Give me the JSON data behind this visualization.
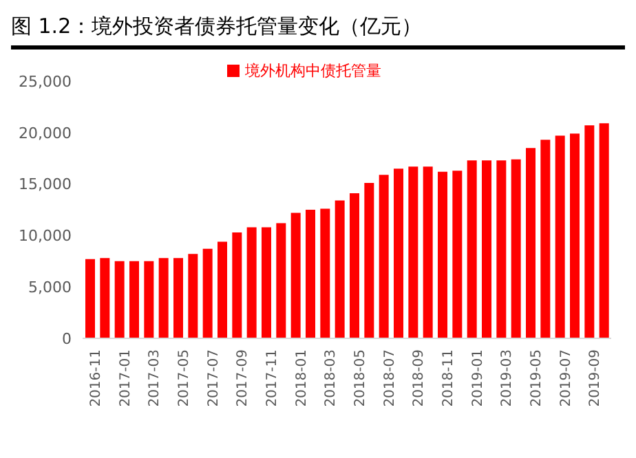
{
  "chart_data": {
    "type": "bar",
    "title": "图 1.2：境外投资者债券托管量变化（亿元）",
    "categories": [
      "2016-11",
      null,
      "2017-01",
      null,
      "2017-03",
      null,
      "2017-05",
      null,
      "2017-07",
      null,
      "2017-09",
      null,
      "2017-11",
      null,
      "2018-01",
      null,
      "2018-03",
      null,
      "2018-05",
      null,
      "2018-07",
      null,
      "2018-09",
      null,
      "2018-11",
      null,
      "2019-01",
      null,
      "2019-03",
      null,
      "2019-05",
      null,
      "2019-07",
      null,
      "2019-09",
      null
    ],
    "series": [
      {
        "name": "境外机构中债托管量",
        "color": "#ff0000",
        "values": [
          7700,
          7800,
          7500,
          7500,
          7500,
          7800,
          7800,
          8200,
          8700,
          9400,
          10300,
          10800,
          10800,
          11200,
          12200,
          12500,
          12600,
          13400,
          14100,
          15100,
          15900,
          16500,
          16700,
          16700,
          16200,
          16300,
          17300,
          17300,
          17300,
          17400,
          18500,
          19300,
          19700,
          19900,
          20700,
          20900
        ]
      }
    ],
    "ylim": [
      0,
      25000
    ],
    "yticks": [
      0,
      {
        "value": 5000,
        "label": "5,000"
      },
      {
        "value": 10000,
        "label": "10,000"
      },
      {
        "value": 15000,
        "label": "15,000"
      },
      {
        "value": 20000,
        "label": "20,000"
      },
      {
        "value": 25000,
        "label": "25,000"
      }
    ],
    "grid": false,
    "legend": "top"
  }
}
